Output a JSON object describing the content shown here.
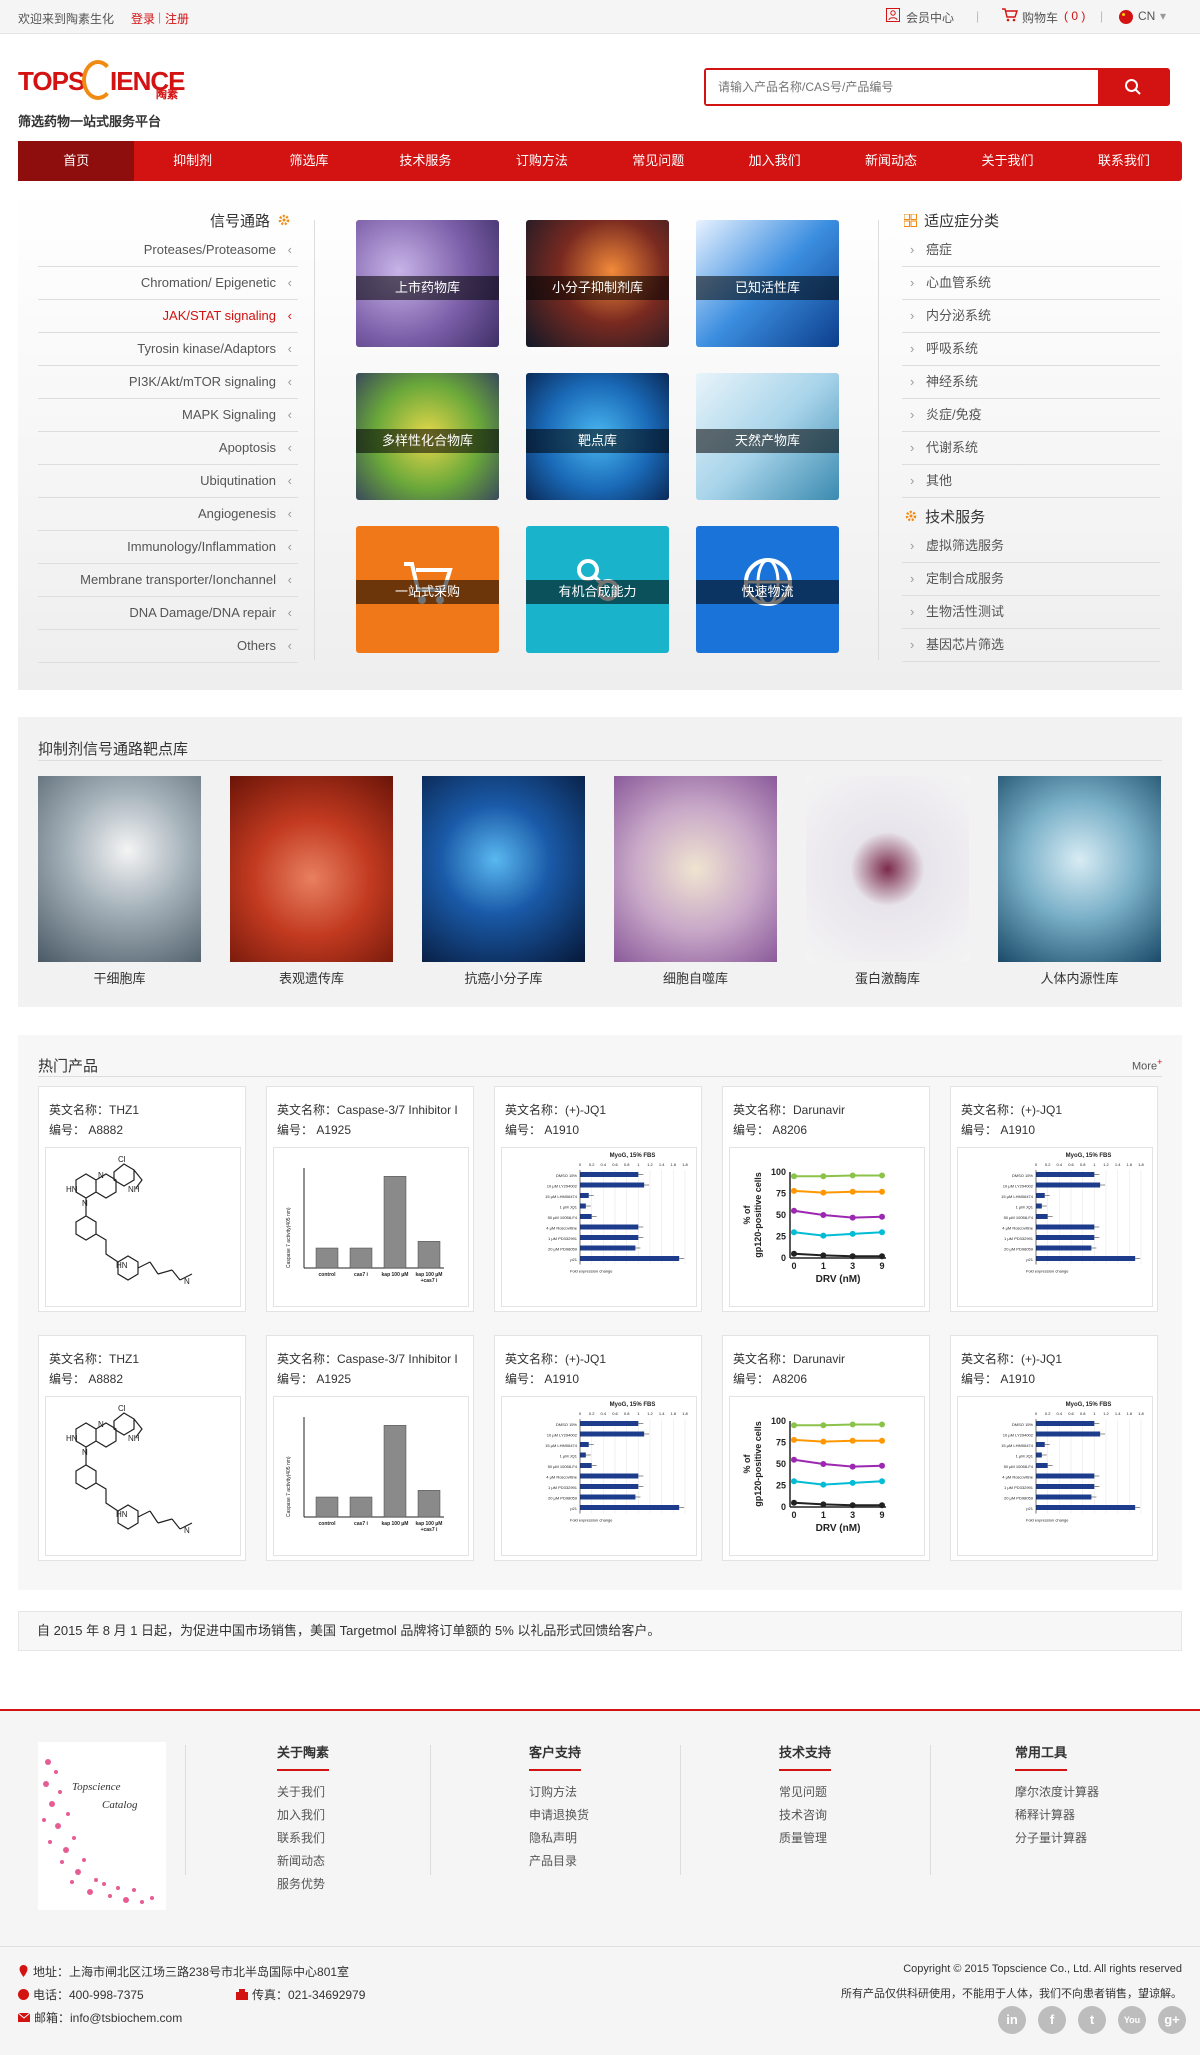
{
  "topbar": {
    "welcome": "欢迎来到陶素生化",
    "login": "登录",
    "separator": "|",
    "register": "注册",
    "member": "会员中心",
    "divider": "|",
    "cart_label": "购物车",
    "cart_count": "( 0 )",
    "lang": "CN",
    "lang_arrow": "▾"
  },
  "logo": {
    "part1": "TOPS",
    "part2": "IENCE",
    "cn": "陶素"
  },
  "slogan": "筛选药物一站式服务平台",
  "search": {
    "placeholder": "请输入产品名称/CAS号/产品编号"
  },
  "nav": [
    "首页",
    "抑制剂",
    "筛选库",
    "技术服务",
    "订购方法",
    "常见问题",
    "加入我们",
    "新闻动态",
    "关于我们",
    "联系我们"
  ],
  "signaling": {
    "title": "信号通路",
    "items": [
      "Proteases/Proteasome",
      "Chromation/ Epigenetic",
      "JAK/STAT signaling",
      "Tyrosin kinase/Adaptors",
      "PI3K/Akt/mTOR signaling",
      "MAPK Signaling",
      "Apoptosis",
      "Ubiqutination",
      "Angiogenesis",
      "Immunology/Inflammation",
      "Membrane transporter/Ionchannel",
      "DNA Damage/DNA repair",
      "Others"
    ]
  },
  "tiles": [
    "上市药物库",
    "小分子抑制剂库",
    "已知活性库",
    "多样性化合物库",
    "靶点库",
    "天然产物库",
    "一站式采购",
    "有机合成能力",
    "快速物流"
  ],
  "indications": {
    "title": "适应症分类",
    "items": [
      "癌症",
      "心血管系统",
      "内分泌系统",
      "呼吸系统",
      "神经系统",
      "炎症/免疫",
      "代谢系统",
      "其他"
    ]
  },
  "tech_services": {
    "title": "技术服务",
    "items": [
      "虚拟筛选服务",
      "定制合成服务",
      "生物活性测试",
      "基因芯片筛选"
    ]
  },
  "pathway_section": {
    "title": "抑制剂信号通路靶点库",
    "items": [
      "干细胞库",
      "表观遗传库",
      "抗癌小分子库",
      "细胞自噬库",
      "蛋白激酶库",
      "人体内源性库"
    ]
  },
  "hot": {
    "title": "热门产品",
    "more": "More",
    "more_mark": "+",
    "en_prefix": "英文名称：",
    "no_prefix": "编号：",
    "products": [
      {
        "name": "THZ1",
        "code": "A8882"
      },
      {
        "name": "Caspase-3/7 Inhibitor I",
        "code": "A1925"
      },
      {
        "name": "(+)-JQ1",
        "code": "A1910"
      },
      {
        "name": "Darunavir",
        "code": "A8206"
      },
      {
        "name": "(+)-JQ1",
        "code": "A1910"
      }
    ]
  },
  "figures": {
    "caspase": {
      "ylabel": "Caspase 7 activity(405 nm)",
      "categories": [
        "control",
        "cas7 i",
        "kap 100 μM",
        "kap 100 μM\n+cas7 i"
      ],
      "values": [
        0.12,
        0.12,
        0.55,
        0.16
      ]
    },
    "jq1": {
      "title": "MyoG, 15% FBS",
      "ticks": [
        "0",
        "0.2",
        "0.4",
        "0.6",
        "0.8",
        "1",
        "1.2",
        "1.4",
        "1.6",
        "1.8"
      ],
      "xlabel": "Fold expression change",
      "rows": [
        {
          "label": "DMSO 15%",
          "value": 1.0
        },
        {
          "label": "10 μM LY294002",
          "value": 1.1
        },
        {
          "label": "15 μM LHM06474",
          "value": 0.15
        },
        {
          "label": "1 μM JQ1",
          "value": 0.1
        },
        {
          "label": "50 μM 10058-F4",
          "value": 0.2
        },
        {
          "label": "4 μM Roscovitine",
          "value": 1.0
        },
        {
          "label": "1 μM PD332991",
          "value": 1.0
        },
        {
          "label": "20 μM PD98059",
          "value": 0.95
        },
        {
          "label": "p21",
          "value": 1.7
        }
      ]
    },
    "darunavir": {
      "ylabel": "% of gp120-positive cells",
      "xlabel": "DRV (nM)",
      "x_ticks": [
        "0",
        "1",
        "3",
        "9"
      ],
      "y_ticks": [
        "100",
        "75",
        "50",
        "25",
        "0"
      ],
      "series": [
        {
          "color": "#8bc34a",
          "values": [
            95,
            95,
            96,
            96
          ]
        },
        {
          "color": "#ff9800",
          "values": [
            78,
            76,
            77,
            77
          ]
        },
        {
          "color": "#9c27b0",
          "values": [
            55,
            50,
            47,
            48
          ]
        },
        {
          "color": "#00bcd4",
          "values": [
            30,
            26,
            28,
            30
          ]
        },
        {
          "color": "#212121",
          "values": [
            5,
            3,
            2,
            2
          ]
        }
      ]
    }
  },
  "notice": "自 2015 年 8 月 1 日起，为促进中国市场销售，美国 Targetmol 品牌将订单额的 5% 以礼品形式回馈给客户。",
  "footer": {
    "catalog": [
      "Topscience",
      "Catalog"
    ],
    "cols": [
      {
        "title": "关于陶素",
        "links": [
          "关于我们",
          "加入我们",
          "联系我们",
          "新闻动态",
          "服务优势"
        ]
      },
      {
        "title": "客户支持",
        "links": [
          "订购方法",
          "申请退换货",
          "隐私声明",
          "产品目录"
        ]
      },
      {
        "title": "技术支持",
        "links": [
          "常见问题",
          "技术咨询",
          "质量管理"
        ]
      },
      {
        "title": "常用工具",
        "links": [
          "摩尔浓度计算器",
          "稀释计算器",
          "分子量计算器"
        ]
      }
    ],
    "address": "地址：上海市闸北区江场三路238号市北半岛国际中心801室",
    "phone": "电话：400-998-7375",
    "fax": "传真：021-34692979",
    "email": "邮箱：info@tsbiochem.com",
    "copyright": "Copyright © 2015 Topscience Co., Ltd. All rights reserved",
    "disclaimer": "所有产品仅供科研使用，不能用于人体，我们不向患者销售，望谅解。",
    "social": [
      "in",
      "f",
      "t",
      "You",
      "g+"
    ]
  },
  "colors": {
    "brand_red": "#d31212",
    "nav_active": "#8e0e0e",
    "orange": "#f07818",
    "teal": "#1ab3cc",
    "blue": "#1a73d9"
  },
  "icons": [
    "search-icon",
    "user-icon",
    "cart-icon",
    "flag-icon",
    "gear-icon",
    "grid-icon",
    "location-icon",
    "phone-icon",
    "fax-icon",
    "mail-icon"
  ]
}
